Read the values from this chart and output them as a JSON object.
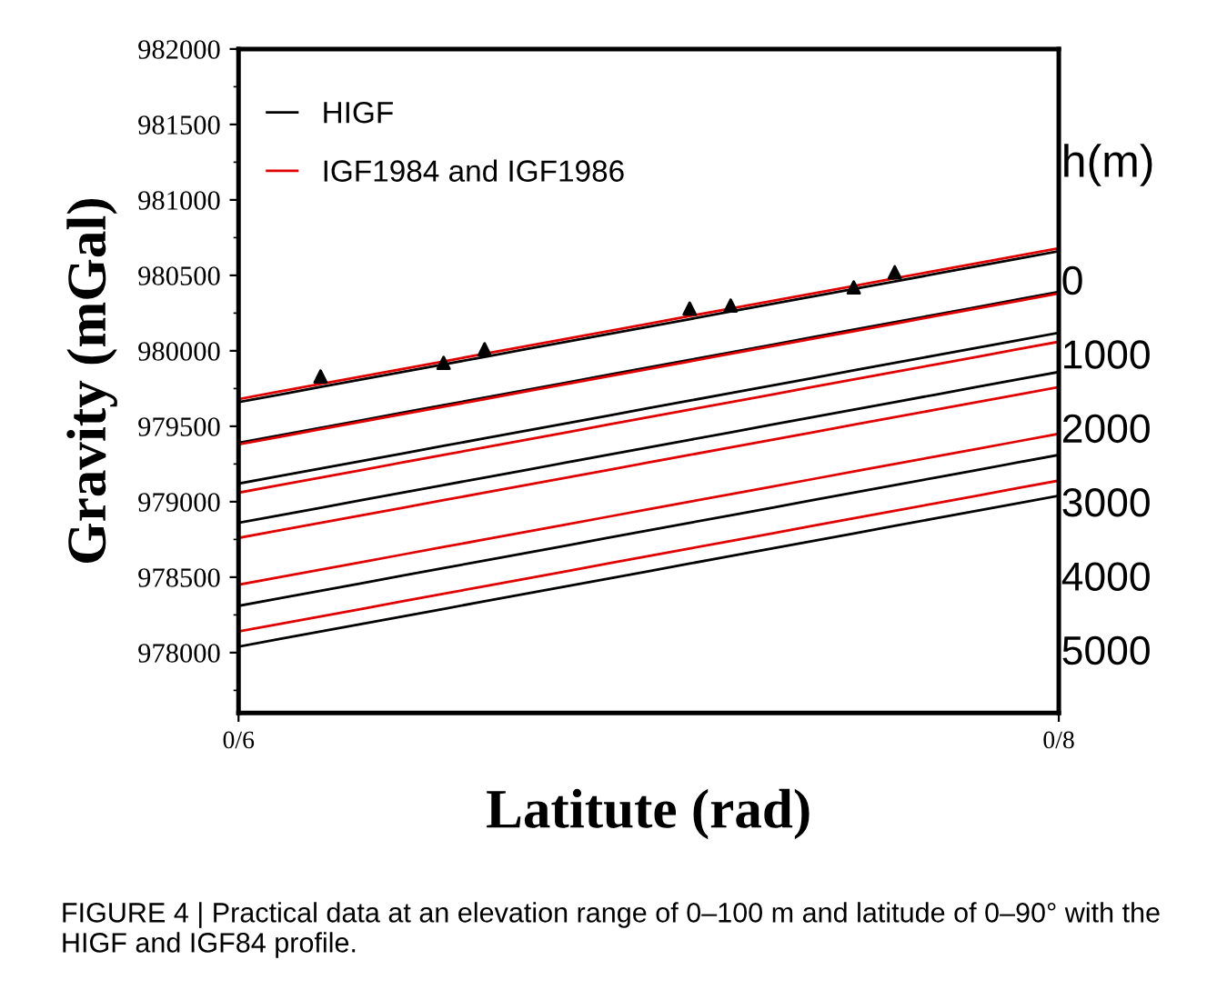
{
  "chart_data": {
    "type": "line",
    "xlabel": "Latitute (rad)",
    "ylabel": "Gravity (mGal)",
    "ylim": [
      977600,
      982000
    ],
    "yticks": [
      978000,
      978500,
      979000,
      979500,
      980000,
      980500,
      981000,
      981500,
      982000
    ],
    "categories": [
      "0/6",
      null,
      null,
      null,
      null,
      null,
      null,
      null,
      null,
      null,
      null,
      null,
      null,
      null,
      null,
      null,
      null,
      null,
      null,
      null,
      "0/8"
    ],
    "series": [
      {
        "name": "HIGF",
        "color": "#000000",
        "values": [
          979660,
          979710,
          979760,
          979810,
          979860,
          979910,
          979960,
          980010,
          980060,
          980110,
          980160,
          980210,
          980260,
          980310,
          980360,
          980410,
          980460,
          980510,
          980560,
          980610,
          980660
        ]
      },
      {
        "name": "IGF1984 and IGF1986",
        "color": "#e00000",
        "values": [
          979680,
          979730,
          979780,
          979830,
          979880,
          979930,
          979980,
          980030,
          980080,
          980130,
          980180,
          980230,
          980280,
          980330,
          980380,
          980430,
          980480,
          980530,
          980580,
          980630,
          980680
        ]
      },
      {
        "color": "#000000",
        "values": [
          979390,
          979440,
          979490,
          979540,
          979590,
          979640,
          979690,
          979740,
          979790,
          979840,
          979890,
          979940,
          979990,
          980040,
          980090,
          980140,
          980190,
          980240,
          980290,
          980340,
          980390
        ]
      },
      {
        "color": "#e00000",
        "values": [
          979380,
          979430,
          979480,
          979530,
          979580,
          979630,
          979680,
          979730,
          979780,
          979830,
          979880,
          979930,
          979980,
          980030,
          980080,
          980130,
          980180,
          980230,
          980280,
          980330,
          980380
        ]
      },
      {
        "color": "#000000",
        "values": [
          979120,
          979170,
          979220,
          979270,
          979320,
          979370,
          979420,
          979470,
          979520,
          979570,
          979620,
          979670,
          979720,
          979770,
          979820,
          979870,
          979920,
          979970,
          980020,
          980070,
          980120
        ]
      },
      {
        "color": "#e00000",
        "values": [
          979060,
          979110,
          979160,
          979210,
          979260,
          979310,
          979360,
          979410,
          979460,
          979510,
          979560,
          979610,
          979660,
          979710,
          979760,
          979810,
          979860,
          979910,
          979960,
          980010,
          980060
        ]
      },
      {
        "color": "#000000",
        "values": [
          978860,
          978910,
          978960,
          979010,
          979060,
          979110,
          979160,
          979210,
          979260,
          979310,
          979360,
          979410,
          979460,
          979510,
          979560,
          979610,
          979660,
          979710,
          979760,
          979810,
          979860
        ]
      },
      {
        "color": "#e00000",
        "values": [
          978760,
          978810,
          978860,
          978910,
          978960,
          979010,
          979060,
          979110,
          979160,
          979210,
          979260,
          979310,
          979360,
          979410,
          979460,
          979510,
          979560,
          979610,
          979660,
          979710,
          979760
        ]
      },
      {
        "color": "#000000",
        "values": [
          978310,
          978360,
          978410,
          978460,
          978510,
          978560,
          978610,
          978660,
          978710,
          978760,
          978810,
          978860,
          978910,
          978960,
          979010,
          979060,
          979110,
          979160,
          979210,
          979260,
          979310
        ]
      },
      {
        "color": "#e00000",
        "values": [
          978450,
          978500,
          978550,
          978600,
          978650,
          978700,
          978750,
          978800,
          978850,
          978900,
          978950,
          979000,
          979050,
          979100,
          979150,
          979200,
          979250,
          979300,
          979350,
          979400,
          979450
        ]
      },
      {
        "color": "#000000",
        "values": [
          978040,
          978090,
          978140,
          978190,
          978240,
          978290,
          978340,
          978390,
          978440,
          978490,
          978540,
          978590,
          978640,
          978690,
          978740,
          978790,
          978840,
          978890,
          978940,
          978990,
          979040
        ]
      },
      {
        "color": "#e00000",
        "values": [
          978140,
          978190,
          978240,
          978290,
          978340,
          978390,
          978440,
          978490,
          978540,
          978590,
          978640,
          978690,
          978740,
          978790,
          978840,
          978890,
          978940,
          978990,
          979040,
          979090,
          979140
        ]
      },
      {
        "type": "scatter",
        "marker": "triangle",
        "color": "#000000",
        "values": [
          null,
          null,
          979830,
          null,
          null,
          979920,
          980010,
          null,
          null,
          null,
          null,
          980280,
          980300,
          null,
          null,
          980420,
          980520,
          null,
          null,
          null,
          null
        ]
      }
    ],
    "legend": "top left",
    "grid": false,
    "line_style": "solid",
    "annotations": [
      "h(m)",
      "0",
      "1000",
      "2000",
      "3000",
      "4000",
      "5000",
      "FIGURE 4 | Practical data at an elevation range of 0–100 m and latitude of 0–90° with the HIGF and IGF84 profile."
    ]
  }
}
